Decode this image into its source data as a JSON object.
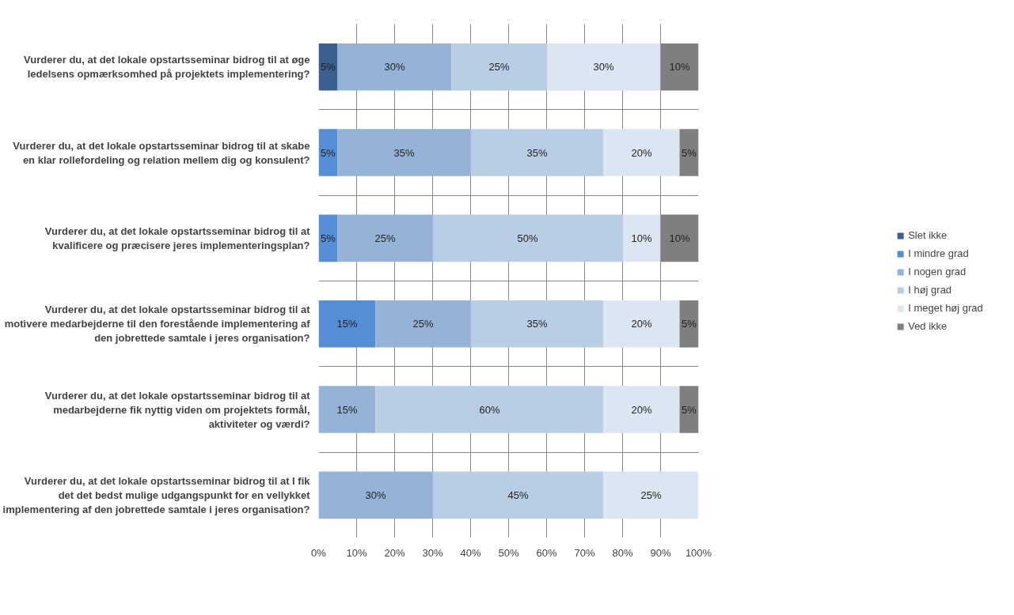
{
  "chart_data": {
    "type": "bar",
    "orientation": "horizontal",
    "stacked": true,
    "categories": [
      "Vurderer du, at det lokale opstartsseminar bidrog til at øge ledelsens opmærksomhed på projektets implementering?",
      "Vurderer du, at det lokale opstartsseminar bidrog til at skabe en klar rollefordeling og relation mellem dig og konsulent?",
      "Vurderer du, at det lokale opstartsseminar bidrog til at kvalificere og præcisere jeres implementeringsplan?",
      "Vurderer du, at det lokale opstartsseminar bidrog til at motivere medarbejderne til den forestående implementering af den jobrettede samtale i jeres organisation?",
      "Vurderer du, at det lokale opstartsseminar bidrog til at medarbejderne fik nyttig viden om projektets formål, aktiviteter og værdi?",
      "Vurderer du, at det lokale opstartsseminar bidrog til at I fik det det bedst mulige udgangspunkt for en vellykket implementering af den jobrettede samtale i jeres organisation?"
    ],
    "series": [
      {
        "name": "Slet ikke",
        "color": "#3b5f8e",
        "values": [
          5,
          null,
          null,
          null,
          null,
          null
        ],
        "value_labels": [
          "5%",
          null,
          null,
          null,
          null,
          null
        ]
      },
      {
        "name": "I mindre grad",
        "color": "#558ed5",
        "values": [
          null,
          5,
          5,
          15,
          null,
          null
        ],
        "value_labels": [
          null,
          "5%",
          "5%",
          "15%",
          null,
          null
        ]
      },
      {
        "name": "I nogen grad",
        "color": "#95b3d7",
        "values": [
          30,
          35,
          25,
          25,
          15,
          30
        ],
        "value_labels": [
          "30%",
          "35%",
          "25%",
          "25%",
          "15%",
          "30%"
        ]
      },
      {
        "name": "I høj grad",
        "color": "#b9cde5",
        "values": [
          25,
          35,
          50,
          35,
          60,
          45
        ],
        "value_labels": [
          "25%",
          "35%",
          "50%",
          "35%",
          "60%",
          "45%"
        ]
      },
      {
        "name": "I meget høj grad",
        "color": "#dce6f2",
        "values": [
          30,
          20,
          10,
          20,
          20,
          25
        ],
        "value_labels": [
          "30%",
          "20%",
          "10%",
          "20%",
          "20%",
          "25%"
        ]
      },
      {
        "name": "Ved ikke",
        "color": "#7f7f7f",
        "values": [
          10,
          5,
          10,
          5,
          5,
          null
        ],
        "value_labels": [
          "10%",
          "5%",
          "10%",
          "5%",
          "5%",
          null
        ]
      }
    ],
    "xlim": [
      0,
      100
    ],
    "xticks": [
      {
        "value": 0,
        "label": "0%"
      },
      {
        "value": 10,
        "label": "10%"
      },
      {
        "value": 20,
        "label": "20%"
      },
      {
        "value": 30,
        "label": "30%"
      },
      {
        "value": 40,
        "label": "40%"
      },
      {
        "value": 50,
        "label": "50%"
      },
      {
        "value": 60,
        "label": "60%"
      },
      {
        "value": 70,
        "label": "70%"
      },
      {
        "value": 80,
        "label": "80%"
      },
      {
        "value": 90,
        "label": "90%"
      },
      {
        "value": 100,
        "label": "100%"
      }
    ],
    "grid": true,
    "legend": "right"
  }
}
